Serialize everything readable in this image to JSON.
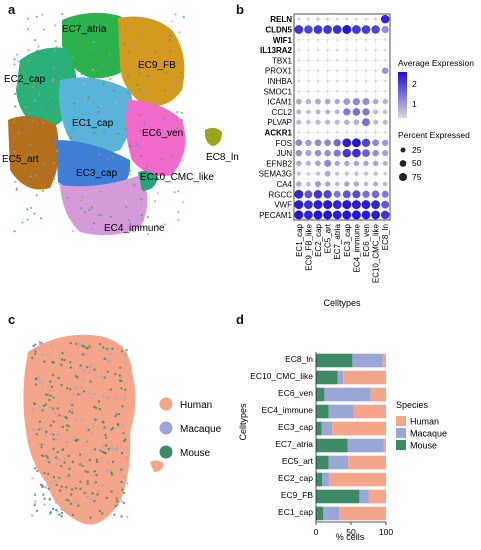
{
  "panels": {
    "a": "a",
    "b": "b",
    "c": "c",
    "d": "d"
  },
  "chart_data": [
    {
      "panel": "a",
      "type": "scatter",
      "cluster_labels": [
        "EC7_atria",
        "EC9_FB",
        "EC2_cap",
        "EC1_cap",
        "EC6_ven",
        "EC8_ln",
        "EC5_art",
        "EC3_cap",
        "EC10_CMC_like",
        "EC4_immune"
      ],
      "colors": [
        "#2bb24c",
        "#d49a1e",
        "#2ab17a",
        "#58b4d8",
        "#f06acb",
        "#9aa41c",
        "#b4701c",
        "#3e7fd8",
        "#27a47a",
        "#d59ad9",
        "#a88bd9",
        "#28a5d8"
      ]
    },
    {
      "panel": "b",
      "type": "dotplot",
      "genes": [
        "RELN",
        "CLDN5",
        "WIF1",
        "IL13RA2",
        "TBX1",
        "PROX1",
        "INHBA",
        "SMOC1",
        "ICAM1",
        "CCL2",
        "PLVAP",
        "ACKR1",
        "FOS",
        "JUN",
        "EFNB2",
        "SEMA3G",
        "CA4",
        "RGCC",
        "VWF",
        "PECAM1"
      ],
      "bold_genes": [
        "RELN",
        "CLDN5",
        "WIF1",
        "IL13RA2",
        "ACKR1"
      ],
      "celltypes": [
        "EC1_cap",
        "EC9_FB_like",
        "EC2_cap",
        "EC5_art",
        "EC7_atria",
        "EC3_cap",
        "EC4_immune",
        "EC6_ven",
        "EC10_CMC_like",
        "EC8_ln"
      ],
      "expression": [
        [
          0.1,
          0.1,
          0.2,
          0.1,
          0.1,
          0.1,
          0.1,
          0.1,
          0.1,
          2.2
        ],
        [
          2.0,
          1.8,
          2.0,
          2.0,
          2.1,
          2.4,
          2.0,
          1.9,
          1.8,
          0.9
        ],
        [
          0.1,
          0.1,
          0.1,
          0.1,
          0.1,
          0.1,
          0.1,
          0.1,
          0.1,
          0.1
        ],
        [
          0.1,
          0.1,
          0.1,
          0.1,
          0.1,
          0.1,
          0.1,
          0.1,
          0.1,
          0.1
        ],
        [
          0.1,
          0.1,
          0.1,
          0.1,
          0.1,
          0.1,
          0.1,
          0.1,
          0.1,
          0.1
        ],
        [
          0.1,
          0.1,
          0.1,
          0.1,
          0.1,
          0.1,
          0.1,
          0.1,
          0.1,
          0.9
        ],
        [
          0.1,
          0.1,
          0.1,
          0.1,
          0.1,
          0.1,
          0.1,
          0.1,
          0.1,
          0.1
        ],
        [
          0.1,
          0.1,
          0.1,
          0.1,
          0.1,
          0.1,
          0.1,
          0.1,
          0.1,
          0.1
        ],
        [
          0.6,
          0.5,
          0.6,
          0.6,
          0.6,
          0.8,
          1.0,
          0.9,
          0.6,
          0.5
        ],
        [
          0.4,
          0.3,
          0.4,
          0.4,
          0.4,
          1.2,
          1.3,
          1.2,
          0.4,
          0.3
        ],
        [
          0.4,
          0.3,
          0.4,
          0.4,
          0.4,
          0.5,
          0.5,
          1.3,
          0.4,
          0.4
        ],
        [
          0.1,
          0.1,
          0.1,
          0.1,
          0.1,
          0.1,
          0.1,
          0.1,
          0.1,
          0.1
        ],
        [
          1.0,
          0.8,
          1.0,
          1.0,
          1.4,
          2.3,
          2.4,
          1.8,
          1.0,
          0.8
        ],
        [
          0.9,
          0.7,
          0.9,
          0.9,
          1.2,
          2.0,
          2.1,
          1.5,
          0.9,
          0.7
        ],
        [
          0.6,
          0.5,
          0.7,
          1.0,
          0.6,
          0.6,
          0.6,
          0.6,
          0.6,
          0.5
        ],
        [
          0.3,
          0.2,
          0.3,
          0.6,
          0.3,
          0.3,
          0.3,
          0.3,
          0.3,
          0.2
        ],
        [
          0.6,
          0.4,
          0.8,
          0.6,
          0.4,
          0.6,
          0.6,
          0.4,
          0.5,
          0.4
        ],
        [
          2.2,
          1.6,
          2.0,
          1.8,
          1.2,
          1.6,
          1.7,
          1.3,
          1.4,
          1.2
        ],
        [
          2.3,
          2.1,
          2.3,
          2.4,
          2.2,
          2.4,
          2.3,
          2.3,
          2.2,
          1.6
        ],
        [
          2.4,
          2.2,
          2.4,
          2.4,
          2.3,
          2.4,
          2.4,
          2.3,
          2.3,
          2.0
        ]
      ],
      "percent": [
        [
          5,
          5,
          8,
          5,
          5,
          5,
          5,
          5,
          5,
          85
        ],
        [
          90,
          85,
          88,
          90,
          88,
          95,
          90,
          88,
          85,
          60
        ],
        [
          3,
          3,
          3,
          3,
          3,
          3,
          3,
          3,
          3,
          3
        ],
        [
          3,
          3,
          3,
          3,
          3,
          3,
          3,
          3,
          3,
          3
        ],
        [
          3,
          3,
          3,
          3,
          3,
          3,
          3,
          3,
          3,
          3
        ],
        [
          3,
          3,
          3,
          3,
          3,
          3,
          3,
          3,
          3,
          45
        ],
        [
          3,
          3,
          3,
          3,
          3,
          3,
          3,
          3,
          3,
          3
        ],
        [
          3,
          3,
          3,
          3,
          3,
          3,
          3,
          3,
          3,
          3
        ],
        [
          35,
          30,
          35,
          35,
          30,
          50,
          60,
          55,
          30,
          30
        ],
        [
          25,
          20,
          25,
          25,
          25,
          60,
          65,
          60,
          25,
          20
        ],
        [
          25,
          20,
          25,
          25,
          25,
          30,
          30,
          70,
          25,
          25
        ],
        [
          3,
          3,
          3,
          3,
          3,
          3,
          3,
          3,
          3,
          3
        ],
        [
          50,
          45,
          50,
          50,
          60,
          90,
          92,
          80,
          50,
          45
        ],
        [
          45,
          40,
          45,
          45,
          55,
          85,
          88,
          70,
          45,
          40
        ],
        [
          30,
          25,
          35,
          55,
          30,
          30,
          30,
          30,
          30,
          25
        ],
        [
          15,
          10,
          15,
          35,
          15,
          15,
          15,
          15,
          15,
          10
        ],
        [
          30,
          20,
          40,
          30,
          20,
          30,
          30,
          20,
          25,
          20
        ],
        [
          92,
          70,
          85,
          80,
          55,
          70,
          75,
          60,
          65,
          55
        ],
        [
          95,
          90,
          95,
          95,
          92,
          95,
          95,
          92,
          90,
          70
        ],
        [
          95,
          92,
          95,
          95,
          92,
          95,
          95,
          92,
          92,
          85
        ]
      ],
      "xlabel": "Celltypes",
      "legend_expression_title": "Average Expression",
      "legend_expression_ticks": [
        1,
        2
      ],
      "legend_percent_title": "Percent Expressed",
      "legend_percent_ticks": [
        25,
        50,
        75
      ],
      "color_low": "#d9d9d9",
      "color_high": "#1a0dd6"
    },
    {
      "panel": "c",
      "type": "scatter",
      "legend": [
        {
          "name": "Human",
          "color": "#f5a58a"
        },
        {
          "name": "Macaque",
          "color": "#9aa7d6"
        },
        {
          "name": "Mouse",
          "color": "#3e8a64"
        }
      ]
    },
    {
      "panel": "d",
      "type": "bar",
      "stacked": true,
      "orientation": "horizontal",
      "categories": [
        "EC8_ln",
        "EC10_CMC_like",
        "EC6_ven",
        "EC4_immune",
        "EC3_cap",
        "EC7_atria",
        "EC5_art",
        "EC2_cap",
        "EC9_FB",
        "EC1_cap"
      ],
      "series": [
        {
          "name": "Mouse",
          "color": "#3e8a64",
          "values": [
            52,
            31,
            12,
            18,
            8,
            45,
            18,
            9,
            62,
            10
          ]
        },
        {
          "name": "Macaque",
          "color": "#9aa7d6",
          "values": [
            43,
            8,
            66,
            36,
            15,
            52,
            28,
            10,
            13,
            23
          ]
        },
        {
          "name": "Human",
          "color": "#f5a58a",
          "values": [
            5,
            61,
            22,
            46,
            77,
            3,
            54,
            81,
            25,
            67
          ]
        }
      ],
      "legend_order": [
        "Human",
        "Macaque",
        "Mouse"
      ],
      "legend_title": "Species",
      "xlabel": "% cells",
      "ylabel": "Celltypes",
      "xlim": [
        0,
        100
      ],
      "xticks": [
        0,
        50,
        100
      ]
    }
  ]
}
